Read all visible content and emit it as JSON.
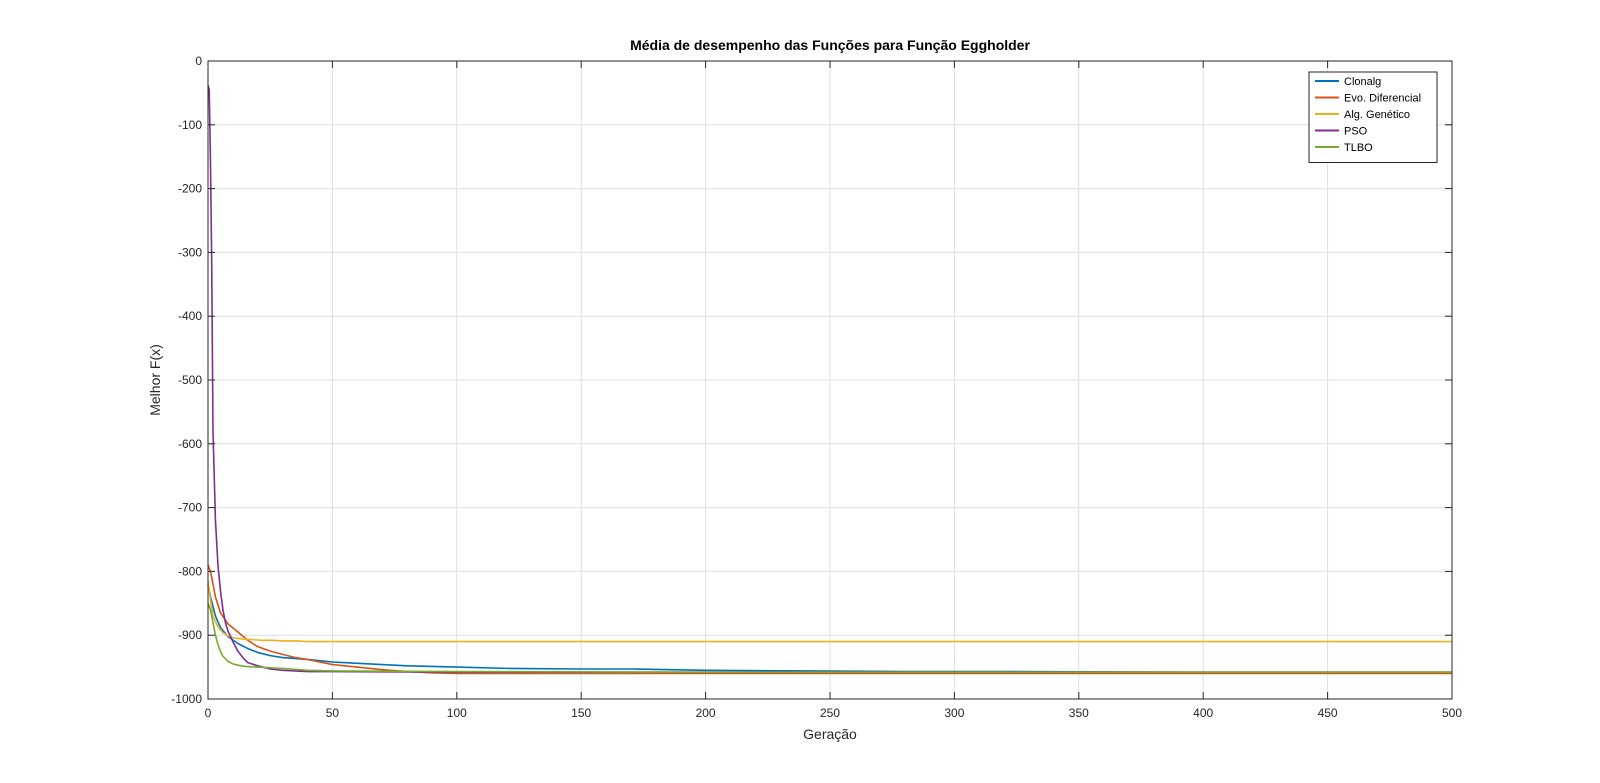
{
  "chart_data": {
    "type": "line",
    "title": "Média de desempenho das Funções para Função Eggholder",
    "xlabel": "Geração",
    "ylabel": "Melhor F(x)",
    "xlim": [
      0,
      500
    ],
    "ylim": [
      -1000,
      0
    ],
    "xticks": [
      0,
      50,
      100,
      150,
      200,
      250,
      300,
      350,
      400,
      450,
      500
    ],
    "yticks": [
      0,
      -100,
      -200,
      -300,
      -400,
      -500,
      -600,
      -700,
      -800,
      -900,
      -1000
    ],
    "grid": true,
    "legend_position": "top-right",
    "series": [
      {
        "name": "Clonalg",
        "color": "#0072BD",
        "x": [
          0,
          1,
          3,
          5,
          8,
          12,
          16,
          20,
          25,
          30,
          40,
          50,
          60,
          70,
          80,
          100,
          120,
          150,
          170,
          200,
          240,
          280,
          320,
          400,
          500
        ],
        "y": [
          -820,
          -840,
          -870,
          -888,
          -902,
          -913,
          -921,
          -927,
          -932,
          -935,
          -938,
          -942,
          -944,
          -946,
          -948,
          -950,
          -952,
          -953,
          -953,
          -955,
          -956,
          -957,
          -957,
          -958,
          -958
        ]
      },
      {
        "name": "Evo. Diferencial",
        "color": "#D95319",
        "x": [
          0,
          1,
          3,
          5,
          8,
          12,
          16,
          20,
          25,
          30,
          35,
          40,
          50,
          60,
          70,
          80,
          90,
          100,
          150,
          200,
          300,
          400,
          500
        ],
        "y": [
          -790,
          -800,
          -840,
          -865,
          -882,
          -895,
          -908,
          -918,
          -925,
          -930,
          -935,
          -938,
          -946,
          -950,
          -954,
          -957,
          -959,
          -960,
          -960,
          -960,
          -960,
          -960,
          -960
        ]
      },
      {
        "name": "Alg. Genético",
        "color": "#EDB120",
        "x": [
          0,
          1,
          2,
          4,
          6,
          8,
          10,
          14,
          18,
          22,
          26,
          30,
          36,
          40,
          60,
          100,
          200,
          300,
          400,
          500
        ],
        "y": [
          -815,
          -845,
          -870,
          -887,
          -896,
          -901,
          -904,
          -906,
          -907,
          -908,
          -908,
          -909,
          -909,
          -910,
          -910,
          -910,
          -910,
          -910,
          -910,
          -910
        ]
      },
      {
        "name": "PSO",
        "color": "#7E2F8E",
        "x": [
          0,
          0.5,
          1,
          1.5,
          2,
          3,
          4,
          5,
          6,
          7,
          8,
          10,
          12,
          14,
          16,
          20,
          25,
          30,
          35,
          40,
          50,
          100,
          200,
          300,
          400,
          500
        ],
        "y": [
          -38,
          -45,
          -160,
          -320,
          -580,
          -720,
          -790,
          -830,
          -860,
          -880,
          -893,
          -910,
          -925,
          -935,
          -943,
          -948,
          -953,
          -955,
          -956,
          -957,
          -957,
          -958,
          -958,
          -958,
          -958,
          -958
        ]
      },
      {
        "name": "TLBO",
        "color": "#77AC30",
        "x": [
          0,
          1,
          2,
          3,
          4,
          5,
          6,
          8,
          10,
          12,
          15,
          20,
          25,
          30,
          40,
          50,
          100,
          200,
          300,
          400,
          500
        ],
        "y": [
          -850,
          -860,
          -880,
          -900,
          -915,
          -925,
          -933,
          -941,
          -945,
          -947,
          -949,
          -950,
          -951,
          -952,
          -955,
          -956,
          -957,
          -958,
          -958,
          -958,
          -958
        ]
      }
    ]
  }
}
